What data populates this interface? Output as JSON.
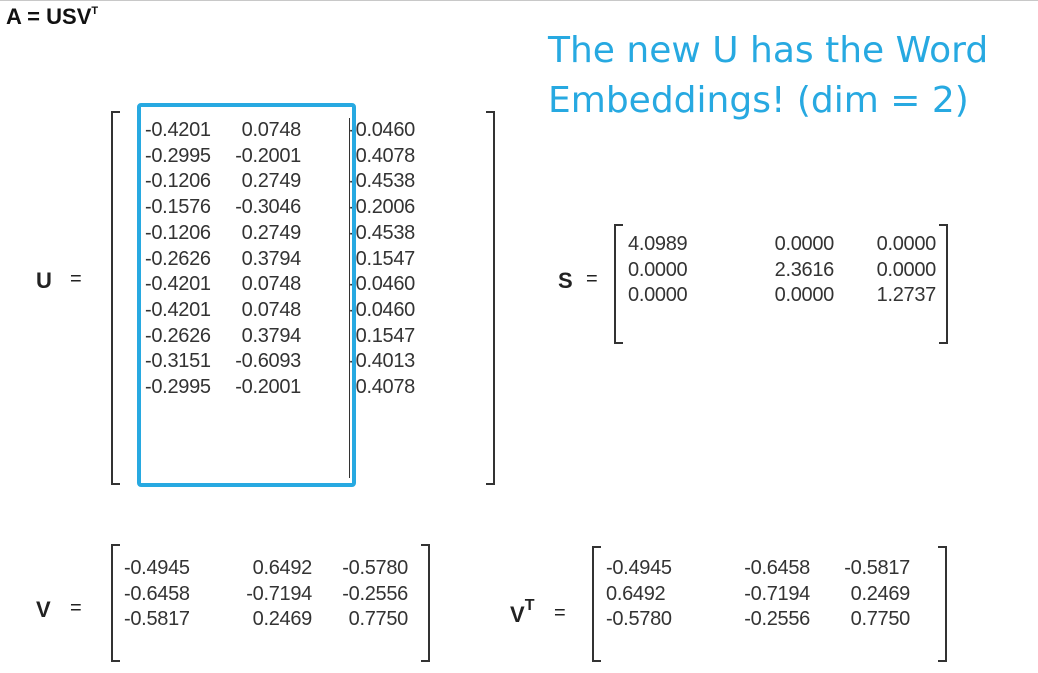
{
  "title": {
    "base": "A = USV",
    "sup": "T"
  },
  "annotation": {
    "line1": "The new U has the Word",
    "line2": "Embeddings! (dim = 2)",
    "color": "#27a9e1"
  },
  "matrices": {
    "U": {
      "label": "U",
      "equals": "=",
      "rows": [
        [
          "-0.4201",
          "0.0748",
          "-0.0460"
        ],
        [
          "-0.2995",
          "-0.2001",
          "0.4078"
        ],
        [
          "-0.1206",
          "0.2749",
          "-0.4538"
        ],
        [
          "-0.1576",
          "-0.3046",
          "-0.2006"
        ],
        [
          "-0.1206",
          "0.2749",
          "-0.4538"
        ],
        [
          "-0.2626",
          "0.3794",
          "0.1547"
        ],
        [
          "-0.4201",
          "0.0748",
          "-0.0460"
        ],
        [
          "-0.4201",
          "0.0748",
          "-0.0460"
        ],
        [
          "-0.2626",
          "0.3794",
          "0.1547"
        ],
        [
          "-0.3151",
          "-0.6093",
          "-0.4013"
        ],
        [
          "-0.2995",
          "-0.2001",
          "0.4078"
        ]
      ]
    },
    "S": {
      "label": "S",
      "equals": "=",
      "rows": [
        [
          "4.0989",
          "0.0000",
          "0.0000"
        ],
        [
          "0.0000",
          "2.3616",
          "0.0000"
        ],
        [
          "0.0000",
          "0.0000",
          "1.2737"
        ]
      ]
    },
    "V": {
      "label": "V",
      "equals": "=",
      "rows": [
        [
          "-0.4945",
          "0.6492",
          "-0.5780"
        ],
        [
          "-0.6458",
          "-0.7194",
          "-0.2556"
        ],
        [
          "-0.5817",
          "0.2469",
          "0.7750"
        ]
      ]
    },
    "VT": {
      "label": "V",
      "sup": "T",
      "equals": "=",
      "rows": [
        [
          "-0.4945",
          "-0.6458",
          "-0.5817"
        ],
        [
          "0.6492",
          "-0.7194",
          "0.2469"
        ],
        [
          "-0.5780",
          "-0.2556",
          "0.7750"
        ]
      ]
    }
  }
}
